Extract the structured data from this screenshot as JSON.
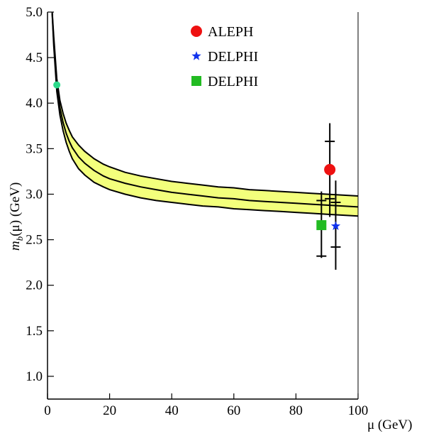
{
  "chart_data": {
    "type": "line",
    "title": "",
    "xlabel": "μ (GeV)",
    "ylabel_main": "m",
    "ylabel_sub": "b",
    "ylabel_rest": "(μ) (GeV)",
    "xlim": [
      0,
      100
    ],
    "ylim": [
      0.75,
      5.0
    ],
    "xticks": [
      0,
      20,
      40,
      60,
      80,
      100
    ],
    "xtick_labels": [
      "0",
      "20",
      "40",
      "60",
      "80",
      "100"
    ],
    "yticks": [
      1.0,
      1.5,
      2.0,
      2.5,
      3.0,
      3.5,
      4.0,
      4.5,
      5.0
    ],
    "ytick_labels": [
      "1.0",
      "1.5",
      "2.0",
      "2.5",
      "3.0",
      "3.5",
      "4.0",
      "4.5",
      "5.0"
    ],
    "grid": false,
    "legend_position": "top-center",
    "band_color": "#f3ff7c",
    "curves": {
      "x": [
        1.5,
        2,
        3,
        4,
        5,
        6,
        7,
        8,
        10,
        12,
        15,
        18,
        20,
        25,
        30,
        35,
        40,
        45,
        50,
        55,
        60,
        65,
        70,
        75,
        80,
        85,
        90,
        95,
        100
      ],
      "central": [
        4.99,
        4.68,
        4.2,
        3.95,
        3.79,
        3.67,
        3.58,
        3.51,
        3.41,
        3.34,
        3.26,
        3.2,
        3.17,
        3.12,
        3.08,
        3.05,
        3.02,
        3.0,
        2.98,
        2.96,
        2.95,
        2.93,
        2.92,
        2.91,
        2.9,
        2.89,
        2.88,
        2.87,
        2.86
      ],
      "upper": [
        5.0,
        4.73,
        4.27,
        4.03,
        3.89,
        3.78,
        3.7,
        3.63,
        3.54,
        3.47,
        3.39,
        3.33,
        3.3,
        3.24,
        3.2,
        3.17,
        3.14,
        3.12,
        3.1,
        3.08,
        3.07,
        3.05,
        3.04,
        3.03,
        3.02,
        3.01,
        3.0,
        2.99,
        2.98
      ],
      "lower": [
        4.98,
        4.63,
        4.13,
        3.87,
        3.7,
        3.57,
        3.47,
        3.39,
        3.28,
        3.21,
        3.13,
        3.08,
        3.05,
        3.0,
        2.96,
        2.93,
        2.91,
        2.89,
        2.87,
        2.86,
        2.84,
        2.83,
        2.82,
        2.81,
        2.8,
        2.79,
        2.78,
        2.77,
        2.76
      ]
    },
    "reference_point": {
      "x": 3.0,
      "y": 4.2,
      "color": "#2bd98a"
    },
    "series": [
      {
        "name": "ALEPH",
        "marker": "circle",
        "color": "#ee1111",
        "x": 90.9,
        "y": 3.27,
        "stat_err": [
          2.95,
          3.58
        ],
        "total_err": [
          2.75,
          3.78
        ]
      },
      {
        "name": "DELPHI",
        "marker": "star",
        "color": "#1133ee",
        "x": 92.8,
        "y": 2.65,
        "stat_err": [
          2.42,
          2.91
        ],
        "total_err": [
          2.17,
          3.15
        ]
      },
      {
        "name": "DELPHI",
        "marker": "square",
        "color": "#22bb22",
        "x": 88.2,
        "y": 2.66,
        "stat_err": [
          2.32,
          2.93
        ],
        "total_err": [
          2.3,
          3.03
        ]
      }
    ]
  }
}
